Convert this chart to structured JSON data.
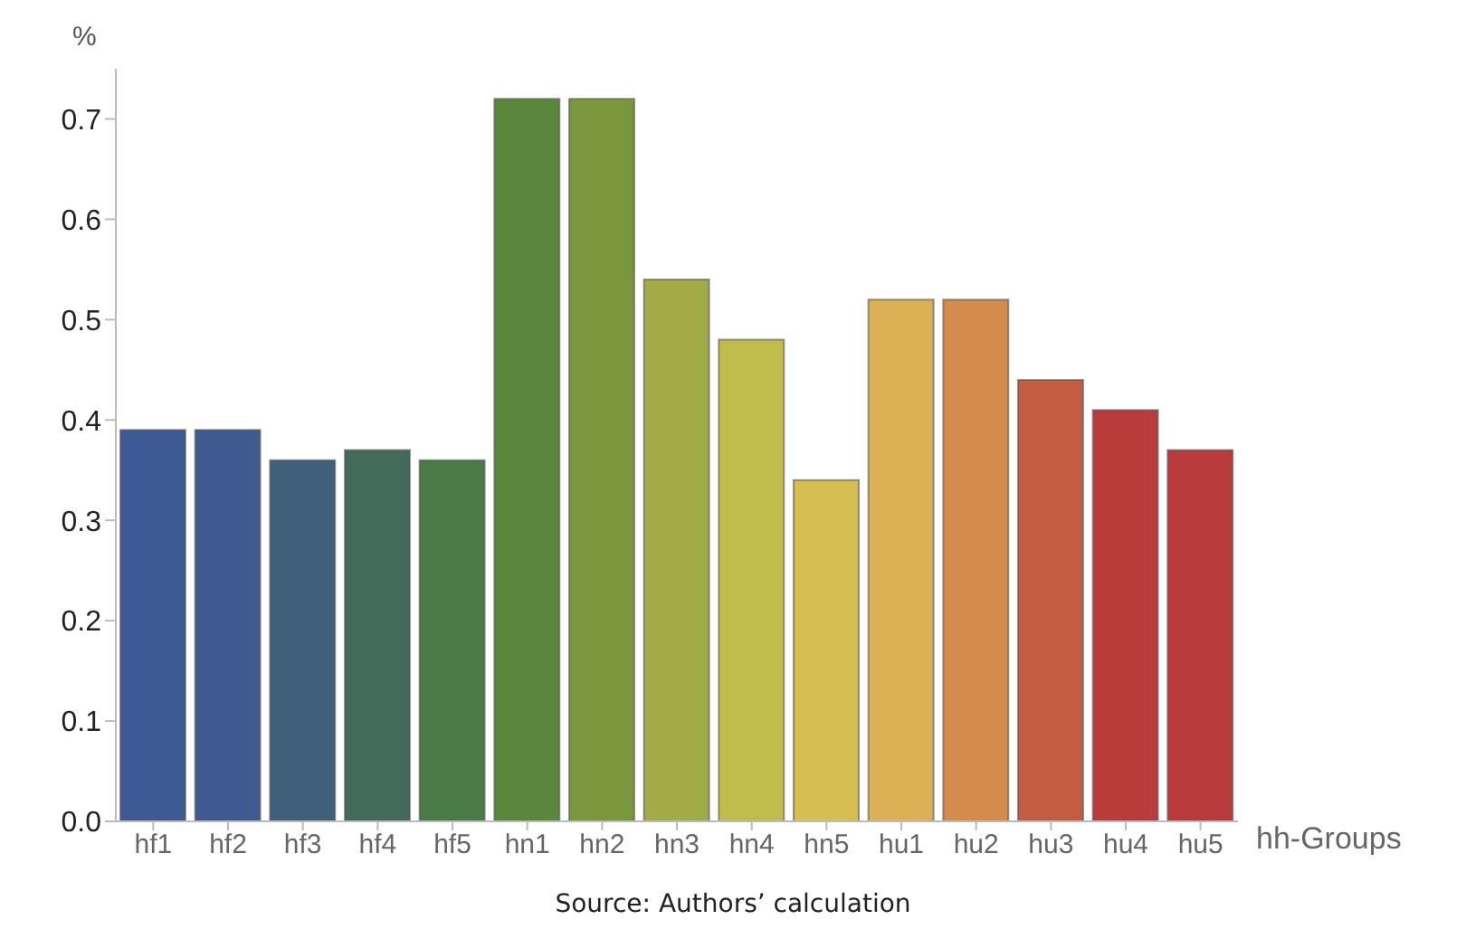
{
  "chart_data": {
    "type": "bar",
    "ylabel": "%",
    "xlabel": "hh-Groups",
    "annotations": [
      "Source: Authors’ calculation"
    ],
    "categories": [
      "hf1",
      "hf2",
      "hf3",
      "hf4",
      "hf5",
      "hn1",
      "hn2",
      "hn3",
      "hn4",
      "hn5",
      "hu1",
      "hu2",
      "hu3",
      "hu4",
      "hu5"
    ],
    "values": [
      0.39,
      0.39,
      0.36,
      0.37,
      0.36,
      0.72,
      0.72,
      0.54,
      0.48,
      0.34,
      0.52,
      0.52,
      0.44,
      0.41,
      0.37
    ],
    "colors": [
      "#3d5a94",
      "#3e5a8e",
      "#3f5f7a",
      "#426b5c",
      "#4a7a45",
      "#5a873c",
      "#7a973e",
      "#a2ab45",
      "#c1bc4b",
      "#d6bf50",
      "#dcb055",
      "#d48b4c",
      "#c45c42",
      "#b93c3a",
      "#b83a3a"
    ],
    "ylim": [
      0,
      0.75
    ],
    "yticks": [
      {
        "value": 0,
        "label": "0.0"
      },
      0.1,
      0.2,
      0.3,
      0.4,
      0.5,
      0.6,
      0.7
    ],
    "grid": false,
    "legend": false
  }
}
